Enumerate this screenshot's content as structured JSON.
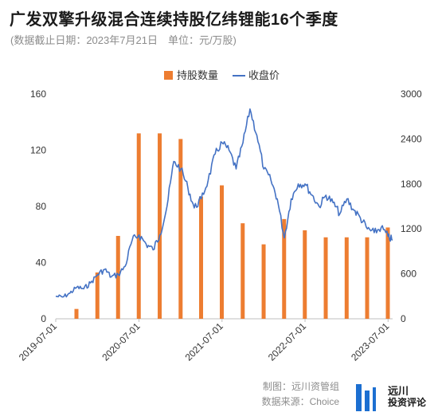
{
  "title": "广发双擎升级混合连续持股亿纬锂能16个季度",
  "subtitle": "(数据截止日期：2023年7月21日　单位：元/万股)",
  "footer": {
    "line1": "制图：远川资管组",
    "line2": "数据来源：Choice"
  },
  "logo": {
    "name": "远川",
    "sub": "投资评论"
  },
  "colors": {
    "bar": "#ed7d31",
    "line": "#4472c4"
  },
  "chart_data": {
    "type": "bar+line",
    "legend": [
      "持股数量",
      "收盘价"
    ],
    "legend_position": "top-center",
    "x_ticks": [
      "2019-07-01",
      "2020-07-01",
      "2021-07-01",
      "2022-07-01",
      "2023-07-01"
    ],
    "left_axis": {
      "ticks": [
        "0",
        "40",
        "80",
        "120",
        "160"
      ],
      "range": [
        0,
        160
      ]
    },
    "right_axis": {
      "ticks": [
        "0",
        "600",
        "1200",
        "1800",
        "2400",
        "3000"
      ],
      "range": [
        0,
        3000
      ]
    },
    "bars": {
      "name": "持股数量",
      "dates": [
        "2019-09-30",
        "2019-12-31",
        "2020-03-31",
        "2020-06-30",
        "2020-09-30",
        "2020-12-31",
        "2021-03-31",
        "2021-06-30",
        "2021-09-30",
        "2021-12-31",
        "2022-03-31",
        "2022-06-30",
        "2022-09-30",
        "2022-12-31",
        "2023-03-31",
        "2023-06-30"
      ],
      "values": [
        7,
        33,
        59,
        132,
        132,
        128,
        87,
        95,
        68,
        53,
        71,
        63,
        58,
        58,
        58,
        65
      ]
    },
    "line": {
      "name": "收盘价",
      "points": [
        [
          "2019-07-01",
          300
        ],
        [
          "2019-08-01",
          290
        ],
        [
          "2019-09-01",
          340
        ],
        [
          "2019-10-01",
          420
        ],
        [
          "2019-11-01",
          400
        ],
        [
          "2019-12-01",
          480
        ],
        [
          "2020-01-01",
          590
        ],
        [
          "2020-02-01",
          660
        ],
        [
          "2020-03-01",
          560
        ],
        [
          "2020-04-01",
          590
        ],
        [
          "2020-05-01",
          700
        ],
        [
          "2020-06-01",
          1050
        ],
        [
          "2020-07-01",
          1120
        ],
        [
          "2020-08-01",
          1000
        ],
        [
          "2020-09-01",
          920
        ],
        [
          "2020-10-01",
          1120
        ],
        [
          "2020-11-01",
          1500
        ],
        [
          "2020-12-01",
          2100
        ],
        [
          "2021-01-01",
          2000
        ],
        [
          "2021-02-01",
          1750
        ],
        [
          "2021-03-01",
          1480
        ],
        [
          "2021-04-01",
          1600
        ],
        [
          "2021-05-01",
          1850
        ],
        [
          "2021-06-01",
          2200
        ],
        [
          "2021-07-01",
          2350
        ],
        [
          "2021-08-01",
          2250
        ],
        [
          "2021-09-01",
          2000
        ],
        [
          "2021-10-01",
          2350
        ],
        [
          "2021-11-01",
          2800
        ],
        [
          "2021-12-01",
          2450
        ],
        [
          "2022-01-01",
          2000
        ],
        [
          "2022-02-01",
          1850
        ],
        [
          "2022-03-01",
          1600
        ],
        [
          "2022-04-01",
          1080
        ],
        [
          "2022-05-01",
          1600
        ],
        [
          "2022-06-01",
          1800
        ],
        [
          "2022-07-01",
          1800
        ],
        [
          "2022-08-01",
          1650
        ],
        [
          "2022-09-01",
          1500
        ],
        [
          "2022-10-01",
          1650
        ],
        [
          "2022-11-01",
          1550
        ],
        [
          "2022-12-01",
          1400
        ],
        [
          "2023-01-01",
          1600
        ],
        [
          "2023-02-01",
          1450
        ],
        [
          "2023-03-01",
          1350
        ],
        [
          "2023-04-01",
          1200
        ],
        [
          "2023-05-01",
          1150
        ],
        [
          "2023-06-01",
          1220
        ],
        [
          "2023-07-01",
          1100
        ],
        [
          "2023-07-21",
          1050
        ]
      ]
    }
  }
}
